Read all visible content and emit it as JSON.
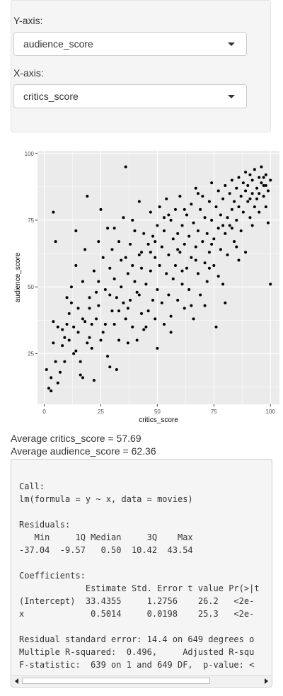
{
  "controls": {
    "y_axis": {
      "label": "Y-axis:",
      "selected": "audience_score"
    },
    "x_axis": {
      "label": "X-axis:",
      "selected": "critics_score"
    }
  },
  "chart_data": {
    "type": "scatter",
    "xlabel": "critics_score",
    "ylabel": "audience_score",
    "xlim": [
      -3,
      104
    ],
    "ylim": [
      6,
      101
    ],
    "xticks": [
      0,
      25,
      50,
      75,
      100
    ],
    "yticks": [
      25,
      50,
      75,
      100
    ],
    "grid": true,
    "colors": {
      "panel": "#ebebeb",
      "grid": "#ffffff",
      "point": "#000000"
    },
    "points": [
      [
        1,
        19
      ],
      [
        2,
        12
      ],
      [
        3,
        16
      ],
      [
        4,
        37
      ],
      [
        4,
        29
      ],
      [
        4,
        78
      ],
      [
        5,
        67
      ],
      [
        5,
        22
      ],
      [
        6,
        35
      ],
      [
        7,
        18
      ],
      [
        8,
        34
      ],
      [
        9,
        31
      ],
      [
        9,
        22
      ],
      [
        10,
        46
      ],
      [
        10,
        36
      ],
      [
        11,
        30
      ],
      [
        12,
        44
      ],
      [
        12,
        50
      ],
      [
        13,
        35
      ],
      [
        13,
        25
      ],
      [
        14,
        58
      ],
      [
        14,
        71
      ],
      [
        15,
        33
      ],
      [
        15,
        42
      ],
      [
        16,
        22
      ],
      [
        16,
        17
      ],
      [
        17,
        52
      ],
      [
        17,
        38
      ],
      [
        18,
        64
      ],
      [
        18,
        37
      ],
      [
        19,
        29
      ],
      [
        19,
        84
      ],
      [
        20,
        46
      ],
      [
        20,
        31
      ],
      [
        21,
        36
      ],
      [
        21,
        27
      ],
      [
        22,
        56
      ],
      [
        22,
        15
      ],
      [
        23,
        38
      ],
      [
        24,
        67
      ],
      [
        24,
        43
      ],
      [
        25,
        79
      ],
      [
        25,
        30
      ],
      [
        26,
        61
      ],
      [
        27,
        49
      ],
      [
        27,
        36
      ],
      [
        28,
        72
      ],
      [
        28,
        24
      ],
      [
        29,
        47
      ],
      [
        29,
        57
      ],
      [
        30,
        41
      ],
      [
        30,
        64
      ],
      [
        31,
        36
      ],
      [
        31,
        53
      ],
      [
        32,
        19
      ],
      [
        32,
        46
      ],
      [
        33,
        67
      ],
      [
        33,
        30
      ],
      [
        34,
        50
      ],
      [
        34,
        60
      ],
      [
        35,
        44
      ],
      [
        35,
        76
      ],
      [
        36,
        38
      ],
      [
        36,
        95
      ],
      [
        37,
        55
      ],
      [
        37,
        29
      ],
      [
        38,
        66
      ],
      [
        38,
        45
      ],
      [
        39,
        75
      ],
      [
        39,
        35
      ],
      [
        40,
        52
      ],
      [
        40,
        71
      ],
      [
        41,
        48
      ],
      [
        41,
        30
      ],
      [
        42,
        62
      ],
      [
        42,
        82
      ],
      [
        43,
        40
      ],
      [
        43,
        57
      ],
      [
        44,
        70
      ],
      [
        45,
        51
      ],
      [
        45,
        35
      ],
      [
        46,
        66
      ],
      [
        46,
        41
      ],
      [
        47,
        78
      ],
      [
        47,
        56
      ],
      [
        48,
        45
      ],
      [
        48,
        69
      ],
      [
        49,
        38
      ],
      [
        49,
        61
      ],
      [
        50,
        73
      ],
      [
        50,
        49
      ],
      [
        51,
        80
      ],
      [
        51,
        58
      ],
      [
        52,
        44
      ],
      [
        52,
        65
      ],
      [
        53,
        71
      ],
      [
        53,
        36
      ],
      [
        54,
        55
      ],
      [
        54,
        83
      ],
      [
        55,
        62
      ],
      [
        55,
        47
      ],
      [
        56,
        75
      ],
      [
        56,
        39
      ],
      [
        57,
        68
      ],
      [
        57,
        53
      ],
      [
        58,
        79
      ],
      [
        58,
        58
      ],
      [
        59,
        45
      ],
      [
        59,
        70
      ],
      [
        60,
        63
      ],
      [
        60,
        84
      ],
      [
        61,
        51
      ],
      [
        61,
        73
      ],
      [
        62,
        66
      ],
      [
        62,
        42
      ],
      [
        63,
        77
      ],
      [
        63,
        57
      ],
      [
        64,
        69
      ],
      [
        64,
        49
      ],
      [
        65,
        81
      ],
      [
        65,
        61
      ],
      [
        66,
        74
      ],
      [
        66,
        38
      ],
      [
        67,
        65
      ],
      [
        67,
        87
      ],
      [
        68,
        55
      ],
      [
        68,
        71
      ],
      [
        69,
        79
      ],
      [
        69,
        47
      ],
      [
        70,
        67
      ],
      [
        70,
        84
      ],
      [
        71,
        59
      ],
      [
        71,
        76
      ],
      [
        72,
        70
      ],
      [
        72,
        52
      ],
      [
        73,
        82
      ],
      [
        73,
        63
      ],
      [
        74,
        75
      ],
      [
        74,
        89
      ],
      [
        75,
        58
      ],
      [
        75,
        68
      ],
      [
        76,
        80
      ],
      [
        76,
        35
      ],
      [
        77,
        72
      ],
      [
        77,
        86
      ],
      [
        78,
        64
      ],
      [
        78,
        77
      ],
      [
        79,
        83
      ],
      [
        79,
        51
      ],
      [
        80,
        70
      ],
      [
        80,
        88
      ],
      [
        81,
        76
      ],
      [
        81,
        62
      ],
      [
        82,
        85
      ],
      [
        82,
        73
      ],
      [
        83,
        79
      ],
      [
        83,
        90
      ],
      [
        84,
        67
      ],
      [
        84,
        82
      ],
      [
        85,
        87
      ],
      [
        85,
        75
      ],
      [
        86,
        91
      ],
      [
        86,
        80
      ],
      [
        87,
        84
      ],
      [
        87,
        71
      ],
      [
        88,
        89
      ],
      [
        88,
        78
      ],
      [
        89,
        86
      ],
      [
        89,
        93
      ],
      [
        90,
        82
      ],
      [
        90,
        88
      ],
      [
        91,
        76
      ],
      [
        91,
        92
      ],
      [
        92,
        85
      ],
      [
        92,
        90
      ],
      [
        93,
        80
      ],
      [
        93,
        94
      ],
      [
        94,
        87
      ],
      [
        94,
        83
      ],
      [
        95,
        91
      ],
      [
        95,
        78
      ],
      [
        96,
        89
      ],
      [
        96,
        95
      ],
      [
        97,
        84
      ],
      [
        97,
        88
      ],
      [
        98,
        92
      ],
      [
        98,
        80
      ],
      [
        99,
        86
      ],
      [
        99,
        74
      ],
      [
        100,
        51
      ],
      [
        100,
        90
      ],
      [
        3,
        11
      ],
      [
        6,
        14
      ],
      [
        8,
        28
      ],
      [
        11,
        40
      ],
      [
        14,
        26
      ],
      [
        17,
        16
      ],
      [
        20,
        42
      ],
      [
        23,
        48
      ],
      [
        26,
        33
      ],
      [
        29,
        20
      ],
      [
        33,
        41
      ],
      [
        36,
        61
      ],
      [
        39,
        58
      ],
      [
        42,
        47
      ],
      [
        44,
        34
      ],
      [
        47,
        63
      ],
      [
        50,
        27
      ],
      [
        53,
        76
      ],
      [
        56,
        33
      ],
      [
        59,
        64
      ],
      [
        62,
        79
      ],
      [
        65,
        43
      ],
      [
        68,
        85
      ],
      [
        71,
        43
      ],
      [
        74,
        66
      ],
      [
        77,
        54
      ],
      [
        80,
        44
      ],
      [
        83,
        72
      ],
      [
        86,
        60
      ],
      [
        89,
        63
      ],
      [
        92,
        73
      ],
      [
        95,
        85
      ],
      [
        98,
        88
      ],
      [
        24,
        52
      ],
      [
        31,
        72
      ],
      [
        37,
        42
      ],
      [
        43,
        63
      ],
      [
        49,
        67
      ],
      [
        55,
        77
      ],
      [
        61,
        56
      ],
      [
        67,
        60
      ],
      [
        73,
        57
      ],
      [
        79,
        73
      ],
      [
        85,
        65
      ],
      [
        91,
        83
      ],
      [
        97,
        91
      ]
    ]
  },
  "stats": {
    "avg_x": "Average critics_score = 57.69",
    "avg_y": "Average audience_score = 62.36"
  },
  "regression": {
    "lines": [
      "Call:",
      "lm(formula = y ~ x, data = movies)",
      "",
      "Residuals:",
      "   Min     1Q Median     3Q    Max",
      "-37.04  -9.57   0.50  10.42  43.54",
      "",
      "Coefficients:",
      "             Estimate Std. Error t value Pr(>|t",
      "(Intercept)  33.4355     1.2756    26.2   <2e-",
      "x             0.5014     0.0198    25.3   <2e-",
      "",
      "Residual standard error: 14.4 on 649 degrees o",
      "Multiple R-squared:  0.496,     Adjusted R-squ",
      "F-statistic:  639 on 1 and 649 DF,  p-value: <"
    ]
  }
}
